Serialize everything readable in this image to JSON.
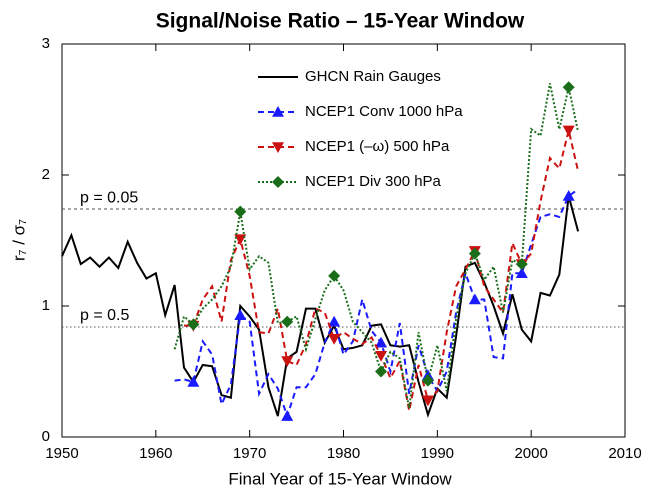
{
  "chart_data": {
    "type": "line",
    "title": "Signal/Noise Ratio – 15-Year Window",
    "x_label": "Final Year of 15-Year Window",
    "y_label": "r₇ / σ₇",
    "xlim": [
      1950,
      2010
    ],
    "xticks": [
      1950,
      1960,
      1970,
      1980,
      1990,
      2000,
      2010
    ],
    "ylim": [
      0,
      3
    ],
    "yticks": [
      0,
      1,
      2,
      3
    ],
    "reference_lines": [
      {
        "value": 1.74,
        "label": "p = 0.05",
        "style": "dashed"
      },
      {
        "value": 0.84,
        "label": "p = 0.5",
        "style": "dotted"
      }
    ],
    "series": [
      {
        "name": "GHCN Rain Gauges",
        "color": "#000000",
        "dash": "solid",
        "marker": "none",
        "x": [
          1950,
          1951,
          1952,
          1953,
          1954,
          1955,
          1956,
          1957,
          1958,
          1959,
          1960,
          1961,
          1962,
          1963,
          1964,
          1965,
          1966,
          1967,
          1968,
          1969,
          1970,
          1971,
          1972,
          1973,
          1974,
          1975,
          1976,
          1977,
          1978,
          1979,
          1980,
          1981,
          1982,
          1983,
          1984,
          1985,
          1986,
          1987,
          1988,
          1989,
          1990,
          1991,
          1992,
          1993,
          1994,
          1995,
          1996,
          1997,
          1998,
          1999,
          2000,
          2001,
          2002,
          2003,
          2004,
          2005
        ],
        "values": [
          1.38,
          1.54,
          1.32,
          1.37,
          1.3,
          1.37,
          1.29,
          1.49,
          1.33,
          1.21,
          1.25,
          0.93,
          1.16,
          0.53,
          0.42,
          0.55,
          0.54,
          0.32,
          0.3,
          1.0,
          0.92,
          0.82,
          0.38,
          0.16,
          0.6,
          0.65,
          0.98,
          0.98,
          0.72,
          0.85,
          0.67,
          0.68,
          0.7,
          0.85,
          0.86,
          0.7,
          0.69,
          0.7,
          0.42,
          0.17,
          0.37,
          0.3,
          0.77,
          1.3,
          1.33,
          1.18,
          1.0,
          0.79,
          1.09,
          0.82,
          0.73,
          1.1,
          1.08,
          1.24,
          1.84,
          1.57
        ]
      },
      {
        "name": "NCEP1 Conv 1000 hPa",
        "color": "#1a1aff",
        "dash": "dashed",
        "marker": "triangle-up",
        "x": [
          1962,
          1963,
          1964,
          1965,
          1966,
          1967,
          1968,
          1969,
          1970,
          1971,
          1972,
          1973,
          1974,
          1975,
          1976,
          1977,
          1978,
          1979,
          1980,
          1981,
          1982,
          1983,
          1984,
          1985,
          1986,
          1987,
          1988,
          1989,
          1990,
          1991,
          1992,
          1993,
          1994,
          1995,
          1996,
          1997,
          1998,
          1999,
          2000,
          2001,
          2002,
          2003,
          2004,
          2005
        ],
        "values": [
          0.43,
          0.44,
          0.42,
          0.73,
          0.63,
          0.25,
          0.4,
          0.93,
          0.88,
          0.33,
          0.48,
          0.37,
          0.16,
          0.38,
          0.38,
          0.48,
          0.72,
          0.88,
          0.63,
          0.73,
          1.05,
          0.81,
          0.72,
          0.5,
          0.87,
          0.33,
          0.7,
          0.47,
          0.35,
          0.5,
          0.95,
          1.25,
          1.05,
          1.05,
          0.61,
          0.6,
          1.25,
          1.25,
          1.47,
          1.68,
          1.7,
          1.68,
          1.84,
          1.89
        ]
      },
      {
        "name": "NCEP1 (–ω) 500 hPa",
        "color": "#cc1111",
        "dash": "dashed",
        "marker": "triangle-down",
        "x": [
          1963,
          1964,
          1965,
          1966,
          1967,
          1968,
          1969,
          1970,
          1971,
          1972,
          1973,
          1974,
          1975,
          1976,
          1977,
          1978,
          1979,
          1980,
          1981,
          1982,
          1983,
          1984,
          1985,
          1986,
          1987,
          1988,
          1989,
          1990,
          1991,
          1992,
          1993,
          1994,
          1995,
          1996,
          1997,
          1998,
          1999,
          2000,
          2001,
          2002,
          2003,
          2004,
          2005
        ],
        "values": [
          0.85,
          0.85,
          1.05,
          1.15,
          0.88,
          1.35,
          1.51,
          1.23,
          0.8,
          0.79,
          0.98,
          0.58,
          0.55,
          0.71,
          0.98,
          0.95,
          0.75,
          0.8,
          0.75,
          0.71,
          0.76,
          0.62,
          0.45,
          0.58,
          0.2,
          0.55,
          0.28,
          0.35,
          0.8,
          1.15,
          1.28,
          1.42,
          1.15,
          1.05,
          0.95,
          1.48,
          1.32,
          1.4,
          1.8,
          2.13,
          2.05,
          2.34,
          2.03
        ]
      },
      {
        "name": "NCEP1 Div 300 hPa",
        "color": "#1a6e1a",
        "dash": "dotted",
        "marker": "diamond",
        "x": [
          1962,
          1963,
          1964,
          1965,
          1966,
          1967,
          1968,
          1969,
          1970,
          1971,
          1972,
          1973,
          1974,
          1975,
          1976,
          1977,
          1978,
          1979,
          1980,
          1981,
          1982,
          1983,
          1984,
          1985,
          1986,
          1987,
          1988,
          1989,
          1990,
          1991,
          1992,
          1993,
          1994,
          1995,
          1996,
          1997,
          1998,
          1999,
          2000,
          2001,
          2002,
          2003,
          2004,
          2005
        ],
        "values": [
          0.67,
          0.92,
          0.86,
          0.98,
          1.05,
          1.15,
          1.3,
          1.72,
          1.28,
          1.38,
          1.33,
          0.87,
          0.88,
          0.92,
          0.67,
          0.9,
          1.12,
          1.23,
          1.12,
          0.88,
          0.8,
          0.72,
          0.5,
          0.65,
          0.6,
          0.22,
          0.8,
          0.43,
          0.7,
          0.35,
          0.9,
          1.25,
          1.4,
          1.2,
          1.3,
          0.95,
          1.35,
          1.32,
          2.35,
          2.3,
          2.7,
          2.35,
          2.67,
          2.33
        ]
      }
    ]
  }
}
